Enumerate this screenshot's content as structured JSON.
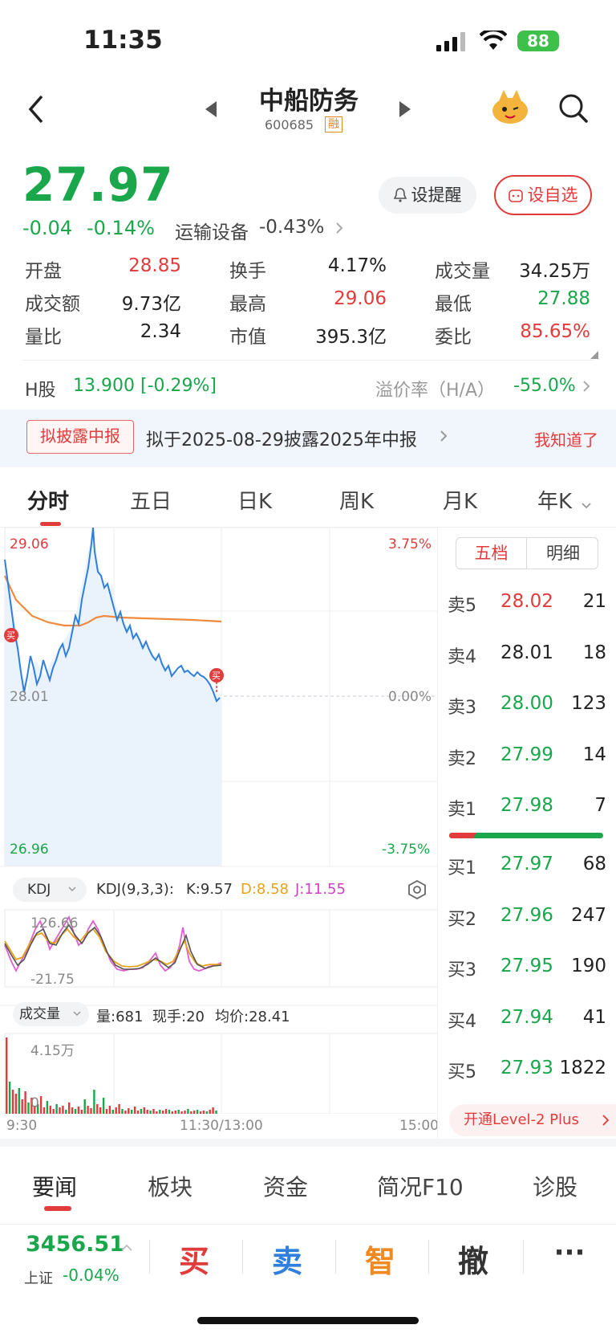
{
  "status": {
    "time": "11:35",
    "battery": "88"
  },
  "header": {
    "title": "中船防务",
    "code": "600685",
    "margin_tag": "融"
  },
  "quote": {
    "price": "27.97",
    "change": "-0.04",
    "change_pct": "-0.14%",
    "sector": "运输设备",
    "sector_change": "-0.43%",
    "alert_label": "设提醒",
    "fav_label": "设自选"
  },
  "stats": [
    {
      "label": "开盘",
      "value": "28.85",
      "color": "red"
    },
    {
      "label": "换手",
      "value": "4.17%",
      "color": "black"
    },
    {
      "label": "成交量",
      "value": "34.25万",
      "color": "black"
    },
    {
      "label": "成交额",
      "value": "9.73亿",
      "color": "black"
    },
    {
      "label": "最高",
      "value": "29.06",
      "color": "red"
    },
    {
      "label": "最低",
      "value": "27.88",
      "color": "green"
    },
    {
      "label": "量比",
      "value": "2.34",
      "color": "black"
    },
    {
      "label": "市值",
      "value": "395.3亿",
      "color": "black"
    },
    {
      "label": "委比",
      "value": "85.65%",
      "color": "red"
    }
  ],
  "hshare": {
    "label": "H股",
    "value": "13.900",
    "change": "[-0.29%]",
    "premium_label": "溢价率（H/A）",
    "premium": "-55.0%"
  },
  "notice": {
    "tag": "拟披露中报",
    "text": "拟于2025-08-29披露2025年中报",
    "dismiss": "我知道了"
  },
  "chart_tabs": [
    "分时",
    "五日",
    "日K",
    "周K",
    "月K",
    "年K"
  ],
  "intraday": {
    "high_label": "29.06",
    "low_label": "26.96",
    "mid_label": "28.01",
    "high_pct": "3.75%",
    "low_pct": "-3.75%",
    "mid_pct": "0.00%",
    "buy_marker": "买",
    "time_labels": [
      "9:30",
      "11:30/13:00",
      "15:00"
    ]
  },
  "kdj": {
    "selector": "KDJ",
    "params": "KDJ(9,3,3):",
    "k": "K:9.57",
    "d": "D:8.58",
    "j": "J:11.55",
    "top": "126.66",
    "bottom": "-21.75"
  },
  "volume": {
    "selector": "成交量",
    "vol": "量:681",
    "now": "现手:20",
    "avg": "均价:28.41",
    "top": "4.15万",
    "zero": "0"
  },
  "orderbook": {
    "tabs": [
      "五档",
      "明细"
    ],
    "asks": [
      {
        "label": "卖5",
        "price": "28.02",
        "vol": "21",
        "color": "red"
      },
      {
        "label": "卖4",
        "price": "28.01",
        "vol": "18",
        "color": "black"
      },
      {
        "label": "卖3",
        "price": "28.00",
        "vol": "123",
        "color": "green"
      },
      {
        "label": "卖2",
        "price": "27.99",
        "vol": "14",
        "color": "green"
      },
      {
        "label": "卖1",
        "price": "27.98",
        "vol": "7",
        "color": "green"
      }
    ],
    "bids": [
      {
        "label": "买1",
        "price": "27.97",
        "vol": "68",
        "color": "green"
      },
      {
        "label": "买2",
        "price": "27.96",
        "vol": "247",
        "color": "green"
      },
      {
        "label": "买3",
        "price": "27.95",
        "vol": "190",
        "color": "green"
      },
      {
        "label": "买4",
        "price": "27.94",
        "vol": "41",
        "color": "green"
      },
      {
        "label": "买5",
        "price": "27.93",
        "vol": "1822",
        "color": "green"
      }
    ],
    "level2": "开通Level-2 Plus"
  },
  "bottom_tabs": [
    "要闻",
    "板块",
    "资金",
    "简况F10",
    "诊股"
  ],
  "index": {
    "value": "3456.51",
    "name": "上证",
    "change": "-0.04%"
  },
  "actions": {
    "buy": "买",
    "sell": "卖",
    "smart": "智",
    "cancel": "撤",
    "more": "···"
  }
}
